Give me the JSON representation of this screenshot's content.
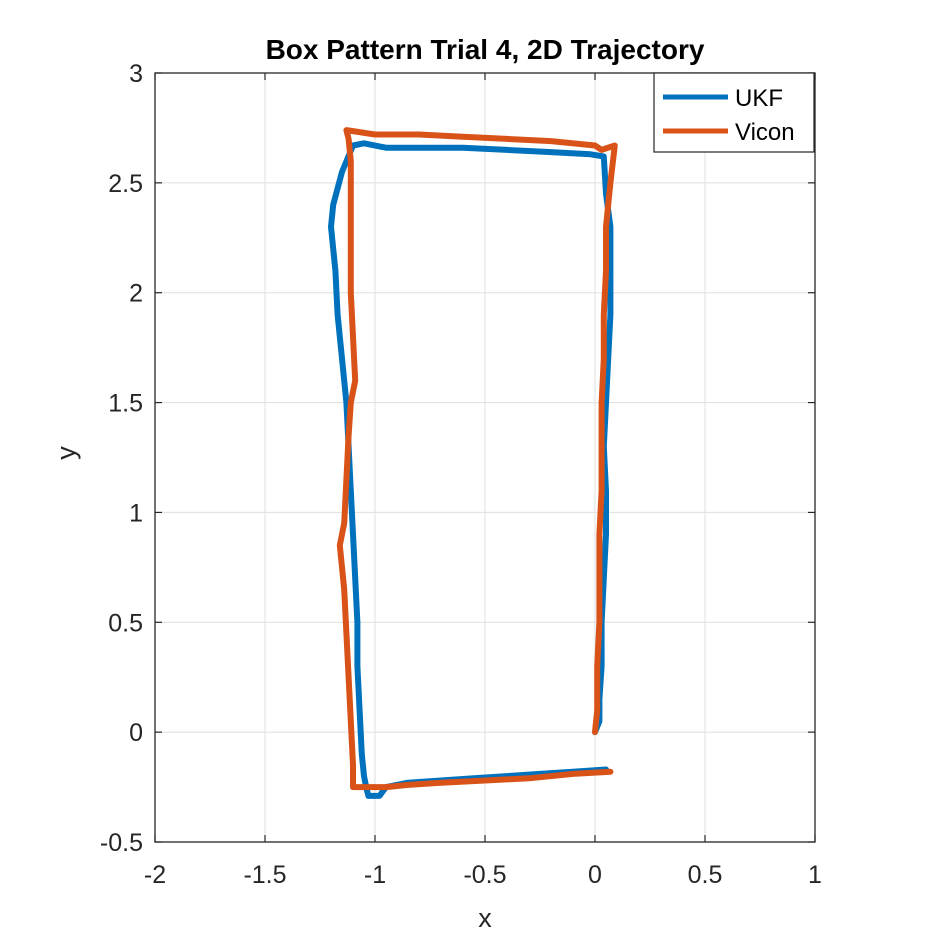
{
  "chart_data": {
    "type": "line",
    "title": "Box Pattern Trial 4, 2D Trajectory",
    "xlabel": "x",
    "ylabel": "y",
    "xlim": [
      -2,
      1
    ],
    "ylim": [
      -0.5,
      3
    ],
    "xticks": [
      "-2",
      "-1.5",
      "-1",
      "-0.5",
      "0",
      "0.5",
      "1"
    ],
    "yticks": [
      "-0.5",
      "0",
      "0.5",
      "1",
      "1.5",
      "2",
      "2.5",
      "3"
    ],
    "grid": true,
    "legend_position": "top-right",
    "series": [
      {
        "name": "UKF",
        "color": "#0072BD",
        "points": [
          [
            0.0,
            0.0
          ],
          [
            0.02,
            0.05
          ],
          [
            0.02,
            0.15
          ],
          [
            0.03,
            0.3
          ],
          [
            0.03,
            0.5
          ],
          [
            0.04,
            0.7
          ],
          [
            0.05,
            0.9
          ],
          [
            0.05,
            1.1
          ],
          [
            0.04,
            1.3
          ],
          [
            0.05,
            1.5
          ],
          [
            0.06,
            1.7
          ],
          [
            0.07,
            1.9
          ],
          [
            0.07,
            2.1
          ],
          [
            0.07,
            2.3
          ],
          [
            0.05,
            2.45
          ],
          [
            0.04,
            2.62
          ],
          [
            -0.02,
            2.63
          ],
          [
            -0.2,
            2.64
          ],
          [
            -0.4,
            2.65
          ],
          [
            -0.6,
            2.66
          ],
          [
            -0.8,
            2.66
          ],
          [
            -0.95,
            2.66
          ],
          [
            -1.05,
            2.68
          ],
          [
            -1.1,
            2.67
          ],
          [
            -1.15,
            2.55
          ],
          [
            -1.19,
            2.4
          ],
          [
            -1.2,
            2.3
          ],
          [
            -1.18,
            2.1
          ],
          [
            -1.17,
            1.9
          ],
          [
            -1.15,
            1.7
          ],
          [
            -1.13,
            1.5
          ],
          [
            -1.12,
            1.3
          ],
          [
            -1.11,
            1.1
          ],
          [
            -1.1,
            0.9
          ],
          [
            -1.09,
            0.7
          ],
          [
            -1.08,
            0.5
          ],
          [
            -1.08,
            0.3
          ],
          [
            -1.07,
            0.1
          ],
          [
            -1.06,
            -0.1
          ],
          [
            -1.05,
            -0.2
          ],
          [
            -1.04,
            -0.25
          ],
          [
            -1.03,
            -0.29
          ],
          [
            -0.98,
            -0.29
          ],
          [
            -0.95,
            -0.25
          ],
          [
            -0.85,
            -0.23
          ],
          [
            -0.7,
            -0.22
          ],
          [
            -0.55,
            -0.21
          ],
          [
            -0.4,
            -0.2
          ],
          [
            -0.25,
            -0.19
          ],
          [
            -0.1,
            -0.18
          ],
          [
            0.05,
            -0.17
          ]
        ]
      },
      {
        "name": "Vicon",
        "color": "#D95319",
        "points": [
          [
            0.07,
            -0.18
          ],
          [
            -0.1,
            -0.19
          ],
          [
            -0.3,
            -0.21
          ],
          [
            -0.5,
            -0.22
          ],
          [
            -0.7,
            -0.23
          ],
          [
            -0.85,
            -0.24
          ],
          [
            -0.95,
            -0.25
          ],
          [
            -1.05,
            -0.25
          ],
          [
            -1.1,
            -0.25
          ],
          [
            -1.1,
            -0.15
          ],
          [
            -1.11,
            0.05
          ],
          [
            -1.12,
            0.25
          ],
          [
            -1.13,
            0.45
          ],
          [
            -1.14,
            0.65
          ],
          [
            -1.16,
            0.85
          ],
          [
            -1.14,
            0.95
          ],
          [
            -1.13,
            1.15
          ],
          [
            -1.12,
            1.35
          ],
          [
            -1.11,
            1.5
          ],
          [
            -1.09,
            1.6
          ],
          [
            -1.1,
            1.8
          ],
          [
            -1.11,
            2.0
          ],
          [
            -1.11,
            2.2
          ],
          [
            -1.11,
            2.4
          ],
          [
            -1.11,
            2.6
          ],
          [
            -1.12,
            2.7
          ],
          [
            -1.13,
            2.74
          ],
          [
            -1.0,
            2.72
          ],
          [
            -0.8,
            2.72
          ],
          [
            -0.6,
            2.71
          ],
          [
            -0.4,
            2.7
          ],
          [
            -0.2,
            2.69
          ],
          [
            0.0,
            2.67
          ],
          [
            0.03,
            2.65
          ],
          [
            0.09,
            2.67
          ],
          [
            0.07,
            2.5
          ],
          [
            0.05,
            2.3
          ],
          [
            0.05,
            2.1
          ],
          [
            0.04,
            1.9
          ],
          [
            0.04,
            1.7
          ],
          [
            0.03,
            1.5
          ],
          [
            0.03,
            1.3
          ],
          [
            0.03,
            1.1
          ],
          [
            0.02,
            0.9
          ],
          [
            0.02,
            0.7
          ],
          [
            0.02,
            0.5
          ],
          [
            0.01,
            0.3
          ],
          [
            0.01,
            0.1
          ],
          [
            0.0,
            0.0
          ]
        ]
      }
    ]
  }
}
